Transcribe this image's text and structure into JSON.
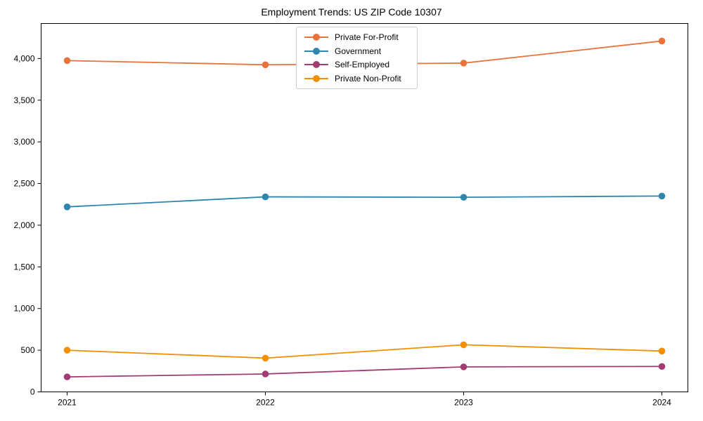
{
  "chart_data": {
    "type": "line",
    "title": "Employment Trends: US ZIP Code 10307",
    "x": [
      "2021",
      "2022",
      "2023",
      "2024"
    ],
    "series": [
      {
        "name": "Private For-Profit",
        "color": "#E8743B",
        "values": [
          3975,
          3925,
          3945,
          4210
        ]
      },
      {
        "name": "Government",
        "color": "#2E86AB",
        "values": [
          2220,
          2340,
          2335,
          2350
        ]
      },
      {
        "name": "Self-Employed",
        "color": "#A23B72",
        "values": [
          180,
          215,
          300,
          305
        ]
      },
      {
        "name": "Private Non-Profit",
        "color": "#F18F01",
        "values": [
          500,
          405,
          565,
          490
        ]
      }
    ],
    "ylim": [
      0,
      4420
    ],
    "yticks": [
      0,
      500,
      1000,
      1500,
      2000,
      2500,
      3000,
      3500,
      4000
    ],
    "ytick_labels": [
      "0",
      "500",
      "1,000",
      "1,500",
      "2,000",
      "2,500",
      "3,000",
      "3,500",
      "4,000"
    ],
    "xlabel": "",
    "ylabel": "",
    "legend_position": "upper center",
    "grid": false,
    "axis_color": "#000000",
    "legend_border_color": "#cccccc"
  }
}
